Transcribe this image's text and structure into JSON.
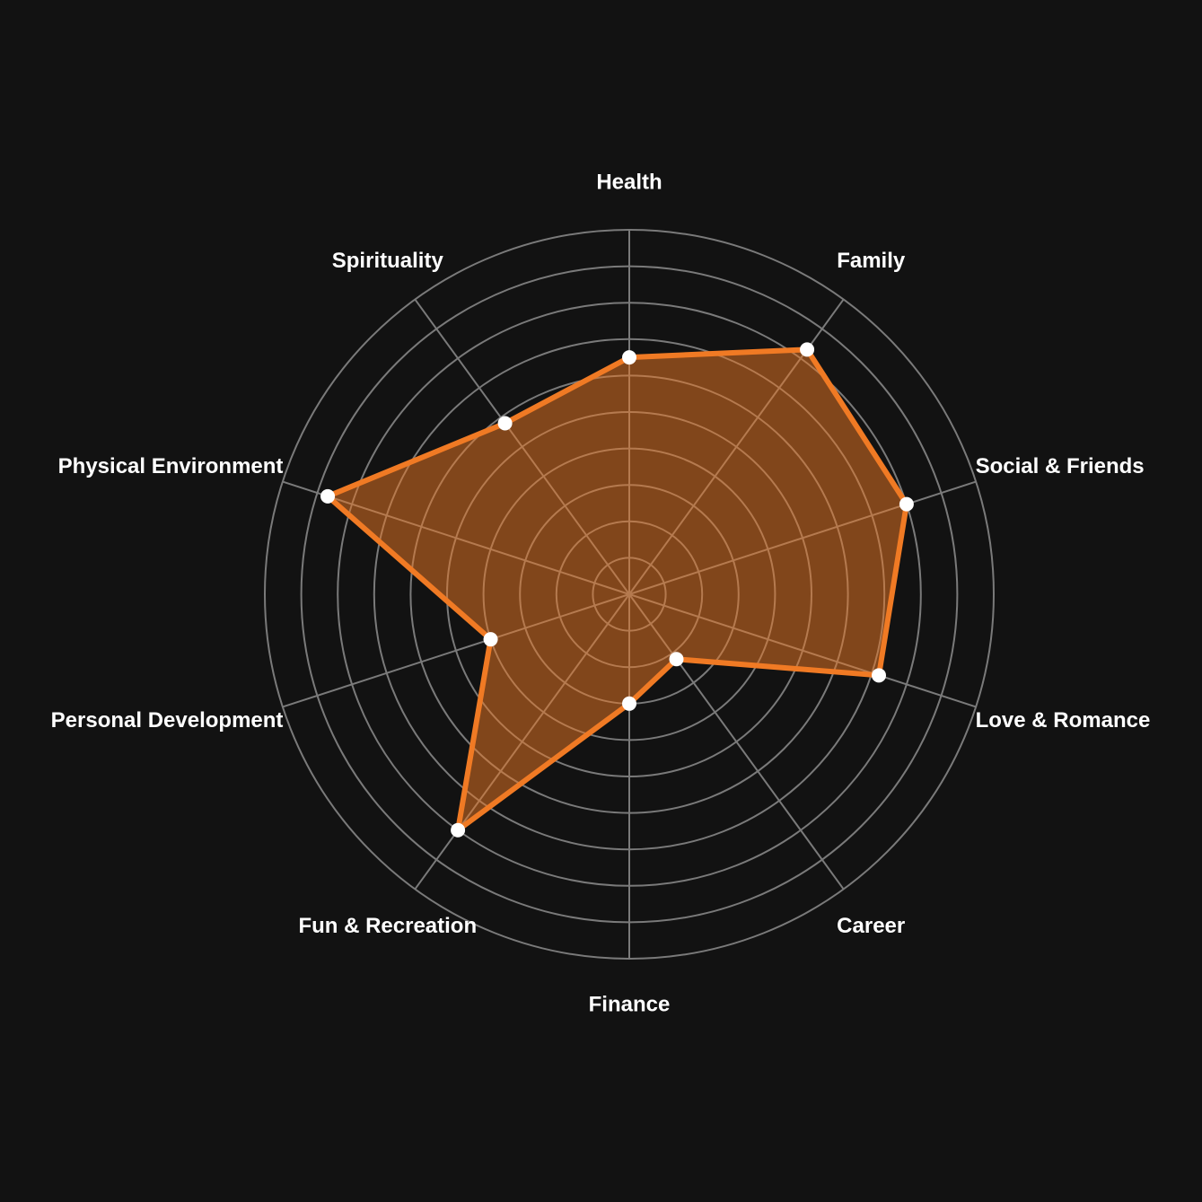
{
  "chart_data": {
    "type": "radar",
    "title": "",
    "categories": [
      "Health",
      "Family",
      "Social & Friends",
      "Love & Romance",
      "Career",
      "Finance",
      "Fun & Recreation",
      "Personal Development",
      "Physical Environment",
      "Spirituality"
    ],
    "series": [
      {
        "values": [
          6.5,
          8.3,
          8.0,
          7.2,
          2.2,
          3.0,
          8.0,
          4.0,
          8.7,
          5.8
        ]
      }
    ],
    "rlim": [
      0,
      10
    ],
    "ring_count": 10,
    "grid": true,
    "legend": "none",
    "colors": {
      "background": "#121212",
      "grid": "#7a7a7a",
      "series_line": "#f07a24",
      "series_fill": "#f07a24",
      "marker": "#ffffff",
      "label": "#ffffff"
    }
  }
}
